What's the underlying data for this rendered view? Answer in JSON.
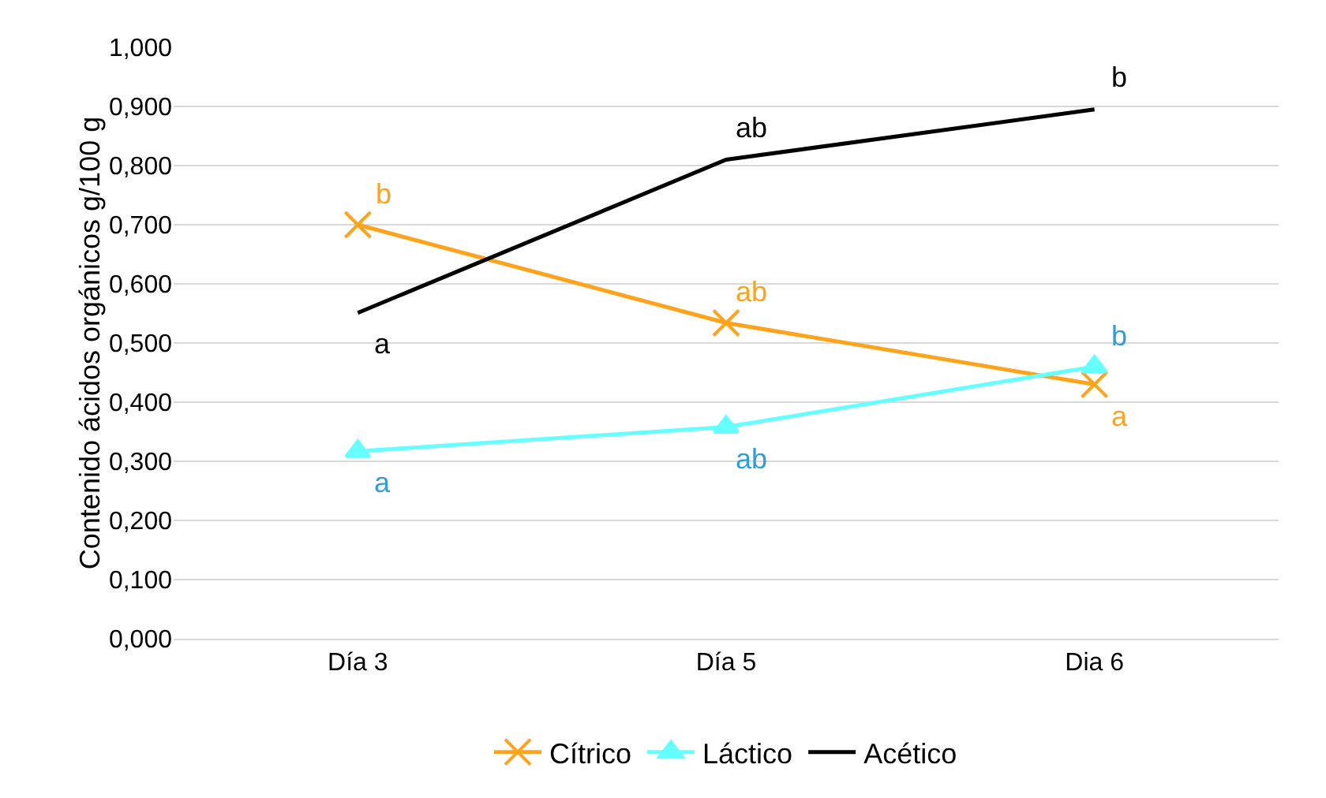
{
  "chart_data": {
    "type": "line",
    "ylabel": "Contenido ácidos orgánicos g/100 g",
    "categories": [
      "Día 3",
      "Día 5",
      "Dia 6"
    ],
    "series": [
      {
        "name": "Cítrico",
        "color": "#ffa31a",
        "marker": "cross",
        "values": [
          0.7,
          0.534,
          0.43
        ]
      },
      {
        "name": "Láctico",
        "color": "#66ffff",
        "marker": "triangle",
        "values": [
          0.317,
          0.358,
          0.46
        ]
      },
      {
        "name": "Acético",
        "color": "#000000",
        "marker": "none",
        "values": [
          0.551,
          0.81,
          0.895
        ]
      }
    ],
    "ylim": [
      0,
      1
    ],
    "yticks": [
      {
        "value": 0,
        "label": "0,000"
      },
      {
        "value": 0.1,
        "label": "0,100"
      },
      {
        "value": 0.2,
        "label": "0,200"
      },
      {
        "value": 0.3,
        "label": "0,300"
      },
      {
        "value": 0.4,
        "label": "0,400"
      },
      {
        "value": 0.5,
        "label": "0,500"
      },
      {
        "value": 0.6,
        "label": "0,600"
      },
      {
        "value": 0.7,
        "label": "0,700"
      },
      {
        "value": 0.8,
        "label": "0,800"
      },
      {
        "value": 0.9,
        "label": "0,900"
      },
      {
        "value": 1,
        "label": "1,000"
      }
    ],
    "grid": "y",
    "legend": "bottom",
    "line_style": "solid",
    "annotations": [
      {
        "text": "a",
        "x": "Día 3",
        "y": 0.551
      },
      {
        "text": "b",
        "x": "Día 3",
        "y": 0.7
      },
      {
        "text": "a",
        "x": "Día 3",
        "y": 0.317
      },
      {
        "text": "ab",
        "x": "Día 5",
        "y": 0.81
      },
      {
        "text": "ab",
        "x": "Día 5",
        "y": 0.534
      },
      {
        "text": "ab",
        "x": "Día 5",
        "y": 0.358
      },
      {
        "text": "b",
        "x": "Dia 6",
        "y": 0.895
      },
      {
        "text": "b",
        "x": "Dia 6",
        "y": 0.46
      },
      {
        "text": "a",
        "x": "Dia 6",
        "y": 0.43
      }
    ]
  }
}
